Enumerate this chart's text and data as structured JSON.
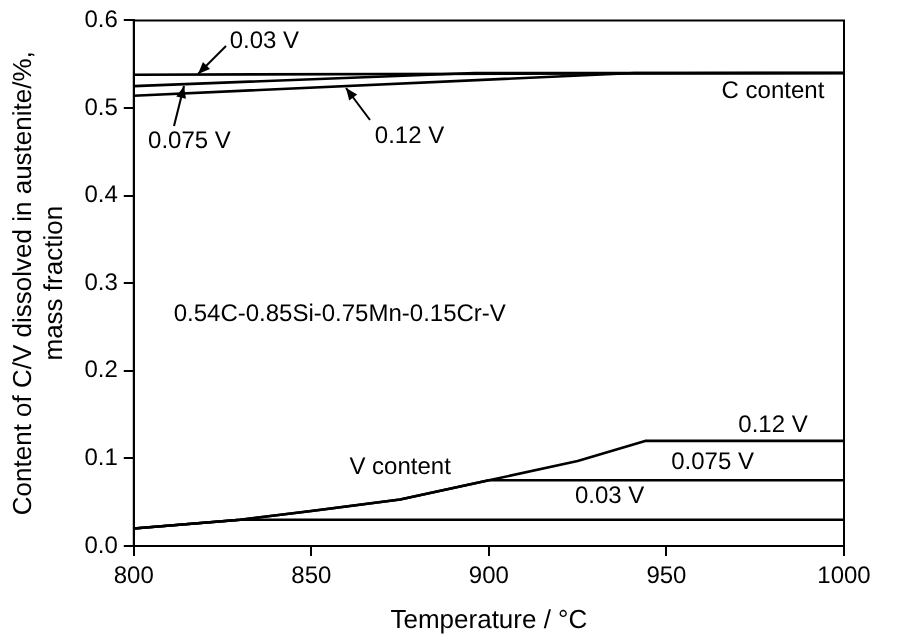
{
  "chart_data": {
    "type": "line",
    "xlabel": "Temperature / °C",
    "ylabel": "Content of C/V dissolved in austenite/%,\nmass fraction",
    "xlim": [
      800,
      1000
    ],
    "xticks": [
      800,
      850,
      900,
      950,
      1000
    ],
    "ylim": [
      0,
      0.6
    ],
    "yticks": [
      {
        "value": 0,
        "label": "0.0"
      },
      0.1,
      0.2,
      0.3,
      0.4,
      0.5,
      0.6
    ],
    "grid": false,
    "legend": false,
    "marker": "none",
    "line_style": "solid",
    "series": [
      {
        "color": "#000000",
        "x": [
          800,
          1000
        ],
        "values": [
          0.538,
          0.54
        ]
      },
      {
        "color": "#000000",
        "x": [
          800,
          896,
          1000
        ],
        "values": [
          0.525,
          0.54,
          0.54
        ]
      },
      {
        "color": "#000000",
        "x": [
          800,
          941,
          1000
        ],
        "values": [
          0.514,
          0.54,
          0.54
        ]
      },
      {
        "color": "#000000",
        "x": [
          800,
          830,
          1000
        ],
        "values": [
          0.02,
          0.03,
          0.03
        ]
      },
      {
        "color": "#000000",
        "x": [
          800,
          830,
          850,
          875,
          900,
          1000
        ],
        "values": [
          0.02,
          0.03,
          0.04,
          0.053,
          0.075,
          0.075
        ]
      },
      {
        "color": "#000000",
        "x": [
          800,
          830,
          850,
          875,
          900,
          925,
          944,
          1000
        ],
        "values": [
          0.02,
          0.03,
          0.04,
          0.053,
          0.075,
          0.097,
          0.12,
          0.12
        ]
      }
    ],
    "annotations": [
      {
        "text": "0.03 V",
        "x": 818,
        "y": 0.539
      },
      {
        "text": "0.075 V",
        "x": 814,
        "y": 0.526
      },
      {
        "text": "0.12 V",
        "x": 860,
        "y": 0.522
      },
      "C content",
      "0.54C-0.85Si-0.75Mn-0.15Cr-V",
      "V content",
      "0.12 V",
      "0.075 V",
      "0.03 V"
    ]
  }
}
